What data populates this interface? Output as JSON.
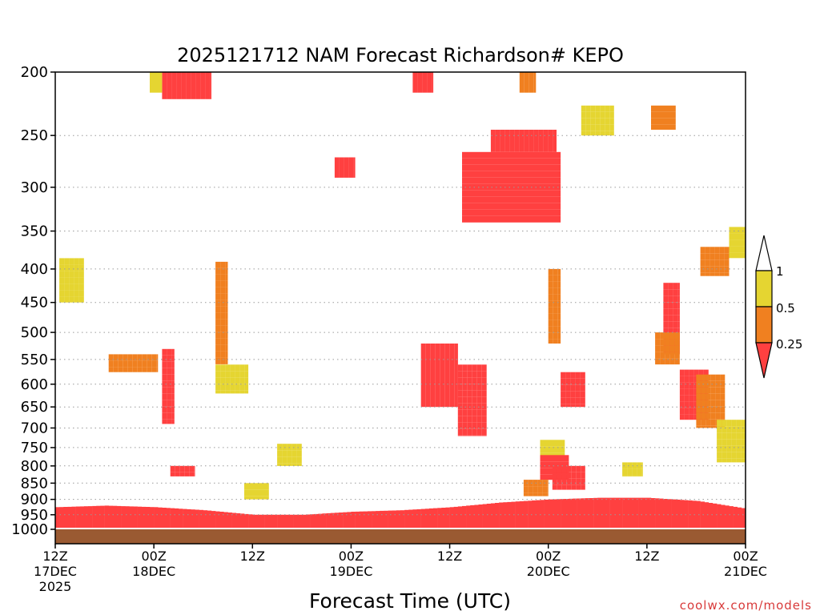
{
  "chart_data": {
    "type": "heatmap",
    "title": "2025121712 NAM Forecast Richardson# KEPO",
    "xlabel": "Forecast Time (UTC)",
    "ylabel": "",
    "credit": "coolwx.com/models",
    "y_axis": {
      "scale": "pressure (log)",
      "range": [
        1000,
        200
      ],
      "ticks": [
        200,
        250,
        300,
        350,
        400,
        450,
        500,
        550,
        600,
        650,
        700,
        750,
        800,
        850,
        900,
        950,
        1000
      ],
      "dotted_gridlines": [
        250,
        300,
        350,
        400,
        450,
        500,
        550,
        600,
        650,
        700,
        750,
        800,
        850,
        900,
        950
      ]
    },
    "x_axis": {
      "range_hours": [
        0,
        84
      ],
      "ticks": [
        {
          "hour": 0,
          "lines": [
            "12Z",
            "17DEC",
            "2025"
          ]
        },
        {
          "hour": 12,
          "lines": [
            "00Z",
            "18DEC"
          ]
        },
        {
          "hour": 24,
          "lines": [
            "12Z"
          ]
        },
        {
          "hour": 36,
          "lines": [
            "00Z",
            "19DEC"
          ]
        },
        {
          "hour": 48,
          "lines": [
            "12Z"
          ]
        },
        {
          "hour": 60,
          "lines": [
            "00Z",
            "20DEC"
          ]
        },
        {
          "hour": 72,
          "lines": [
            "12Z"
          ]
        },
        {
          "hour": 84,
          "lines": [
            "00Z",
            "21DEC"
          ]
        }
      ]
    },
    "colorbar": {
      "levels": [
        "0.25",
        "0.5",
        "1"
      ],
      "colors": {
        "below_0.25": "#ff4040",
        "0.25_to_0.5": "#f08020",
        "0.5_to_1": "#e5d531",
        "above_1": "#ffffff"
      }
    },
    "colors": {
      "red": "#ff4040",
      "orange": "#f08020",
      "yellow": "#e5d531",
      "ground": "#9a5a32"
    },
    "regions": [
      {
        "class": "red",
        "hours": [
          13,
          19
        ],
        "p": [
          200,
          220
        ]
      },
      {
        "class": "yellow",
        "hours": [
          11.5,
          13
        ],
        "p": [
          200,
          215
        ]
      },
      {
        "class": "red",
        "hours": [
          43.5,
          46
        ],
        "p": [
          200,
          215
        ]
      },
      {
        "class": "orange",
        "hours": [
          56.5,
          58.5
        ],
        "p": [
          200,
          215
        ]
      },
      {
        "class": "red",
        "hours": [
          49.5,
          61.5
        ],
        "p": [
          265,
          340
        ]
      },
      {
        "class": "red",
        "hours": [
          53,
          61
        ],
        "p": [
          245,
          265
        ]
      },
      {
        "class": "orange",
        "hours": [
          72.5,
          75.5
        ],
        "p": [
          225,
          245
        ]
      },
      {
        "class": "yellow",
        "hours": [
          64,
          68
        ],
        "p": [
          225,
          250
        ]
      },
      {
        "class": "red",
        "hours": [
          34,
          36.5
        ],
        "p": [
          270,
          290
        ]
      },
      {
        "class": "yellow",
        "hours": [
          82,
          85
        ],
        "p": [
          345,
          385
        ]
      },
      {
        "class": "orange",
        "hours": [
          78.5,
          82
        ],
        "p": [
          370,
          410
        ]
      },
      {
        "class": "yellow",
        "hours": [
          0.5,
          3.5
        ],
        "p": [
          385,
          450
        ]
      },
      {
        "class": "orange",
        "hours": [
          19.5,
          21
        ],
        "p": [
          390,
          560
        ]
      },
      {
        "class": "yellow",
        "hours": [
          19.5,
          23.5
        ],
        "p": [
          560,
          620
        ]
      },
      {
        "class": "orange",
        "hours": [
          6.5,
          12.5
        ],
        "p": [
          540,
          575
        ]
      },
      {
        "class": "red",
        "hours": [
          13,
          14.5
        ],
        "p": [
          530,
          690
        ]
      },
      {
        "class": "red",
        "hours": [
          44.5,
          49
        ],
        "p": [
          520,
          650
        ]
      },
      {
        "class": "red",
        "hours": [
          49,
          52.5
        ],
        "p": [
          560,
          720
        ]
      },
      {
        "class": "orange",
        "hours": [
          60,
          61.5
        ],
        "p": [
          400,
          520
        ]
      },
      {
        "class": "red",
        "hours": [
          61.5,
          64.5
        ],
        "p": [
          575,
          650
        ]
      },
      {
        "class": "red",
        "hours": [
          74,
          76
        ],
        "p": [
          420,
          540
        ]
      },
      {
        "class": "orange",
        "hours": [
          73,
          76
        ],
        "p": [
          500,
          560
        ]
      },
      {
        "class": "red",
        "hours": [
          76,
          79.5
        ],
        "p": [
          570,
          680
        ]
      },
      {
        "class": "orange",
        "hours": [
          78,
          81.5
        ],
        "p": [
          580,
          700
        ]
      },
      {
        "class": "yellow",
        "hours": [
          80.5,
          84
        ],
        "p": [
          680,
          790
        ]
      },
      {
        "class": "red",
        "hours": [
          14,
          17
        ],
        "p": [
          800,
          830
        ]
      },
      {
        "class": "yellow",
        "hours": [
          27,
          30
        ],
        "p": [
          740,
          800
        ]
      },
      {
        "class": "yellow",
        "hours": [
          59,
          62
        ],
        "p": [
          730,
          780
        ]
      },
      {
        "class": "red",
        "hours": [
          59,
          62.5
        ],
        "p": [
          770,
          840
        ]
      },
      {
        "class": "red",
        "hours": [
          60.5,
          64.5
        ],
        "p": [
          800,
          870
        ]
      },
      {
        "class": "yellow",
        "hours": [
          23,
          26
        ],
        "p": [
          850,
          900
        ]
      },
      {
        "class": "yellow",
        "hours": [
          69,
          71.5
        ],
        "p": [
          790,
          830
        ]
      },
      {
        "class": "orange",
        "hours": [
          57,
          60
        ],
        "p": [
          840,
          890
        ]
      }
    ],
    "pbl_layer": {
      "color": "red",
      "top_p_at_hours": [
        {
          "hour": 0,
          "p": 925
        },
        {
          "hour": 6,
          "p": 920
        },
        {
          "hour": 12,
          "p": 925
        },
        {
          "hour": 18,
          "p": 935
        },
        {
          "hour": 24,
          "p": 950
        },
        {
          "hour": 30,
          "p": 950
        },
        {
          "hour": 36,
          "p": 940
        },
        {
          "hour": 42,
          "p": 935
        },
        {
          "hour": 48,
          "p": 925
        },
        {
          "hour": 54,
          "p": 910
        },
        {
          "hour": 60,
          "p": 900
        },
        {
          "hour": 66,
          "p": 895
        },
        {
          "hour": 72,
          "p": 895
        },
        {
          "hour": 78,
          "p": 905
        },
        {
          "hour": 84,
          "p": 930
        }
      ]
    },
    "surface_p_at_hours": [
      {
        "hour": 0,
        "p": 1005
      },
      {
        "hour": 12,
        "p": 1003
      },
      {
        "hour": 24,
        "p": 1008
      },
      {
        "hour": 36,
        "p": 1006
      },
      {
        "hour": 48,
        "p": 1004
      },
      {
        "hour": 60,
        "p": 1000
      },
      {
        "hour": 72,
        "p": 1001
      },
      {
        "hour": 84,
        "p": 1006
      }
    ]
  }
}
